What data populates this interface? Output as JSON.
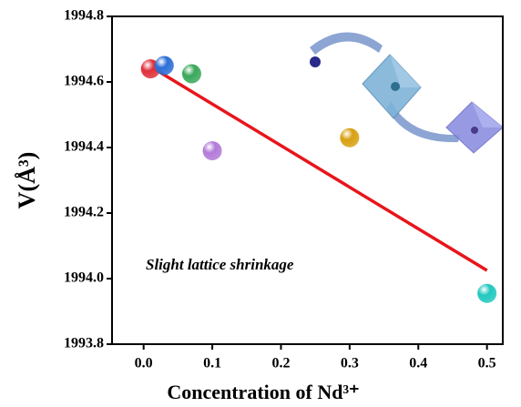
{
  "chart_data": {
    "type": "scatter",
    "x_label": "Concentration of Nd³⁺",
    "y_label": "V(Å³)",
    "annotation": "Slight lattice shrinkage",
    "x": [
      0.01,
      0.03,
      0.07,
      0.1,
      0.3,
      0.5
    ],
    "values": [
      1994.64,
      1994.65,
      1994.625,
      1994.39,
      1994.43,
      1993.955
    ],
    "colors": [
      "#e0303a",
      "#2c6fd6",
      "#3aa85a",
      "#b27ad8",
      "#d8a012",
      "#20c8c0"
    ],
    "fit_line": {
      "x": [
        0.01,
        0.5
      ],
      "values": [
        1994.647,
        1994.025
      ],
      "color": "#e8151b"
    },
    "xlim": [
      -0.046,
      0.523
    ],
    "ylim": [
      1993.8,
      1994.8
    ],
    "xticks": [
      {
        "value": 0,
        "label": "0.0"
      },
      0.1,
      0.2,
      0.3,
      0.4,
      0.5
    ],
    "yticks": [
      1993.8,
      {
        "value": 1994,
        "label": "1994.0"
      },
      1994.2,
      1994.4,
      1994.6,
      1994.8
    ]
  }
}
